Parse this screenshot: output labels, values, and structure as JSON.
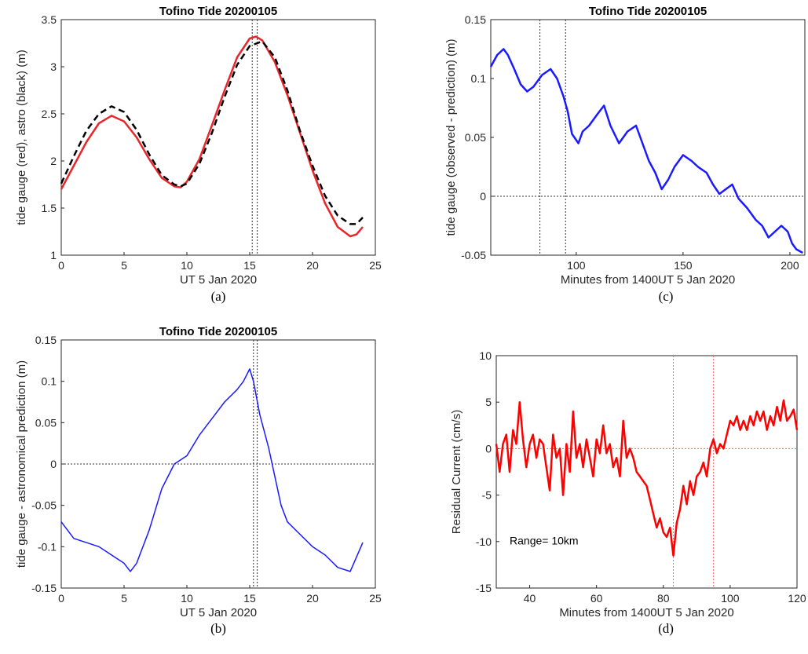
{
  "chart_data": [
    {
      "panel": "(a)",
      "type": "line",
      "title": "Tofino Tide 20200105",
      "xlabel": "UT 5 Jan 2020",
      "ylabel": "tide gauge (red), astro (black) (m)",
      "xlim": [
        0,
        25
      ],
      "ylim": [
        1,
        3.5
      ],
      "xticks": [
        "0",
        "5",
        "10",
        "15",
        "20",
        "25"
      ],
      "yticks": [
        "1",
        "1.5",
        "2",
        "2.5",
        "3",
        "3.5"
      ],
      "vlines": [
        15.2,
        15.6
      ],
      "series": [
        {
          "color": "#e8262b",
          "style": "solid",
          "x": [
            0,
            1,
            2,
            3,
            4,
            5,
            6,
            7,
            8,
            9,
            9.5,
            10,
            11,
            12,
            13,
            14,
            15,
            15.5,
            16,
            17,
            18,
            19,
            20,
            21,
            22,
            23,
            23.5,
            24
          ],
          "y": [
            1.7,
            1.95,
            2.2,
            2.4,
            2.48,
            2.42,
            2.25,
            2.02,
            1.82,
            1.73,
            1.72,
            1.78,
            2.02,
            2.38,
            2.75,
            3.1,
            3.3,
            3.32,
            3.28,
            3.05,
            2.7,
            2.3,
            1.9,
            1.55,
            1.3,
            1.2,
            1.22,
            1.3
          ]
        },
        {
          "color": "#000000",
          "style": "dashed",
          "x": [
            0,
            1,
            2,
            3,
            4,
            5,
            6,
            7,
            8,
            9,
            9.5,
            10,
            11,
            12,
            13,
            14,
            15,
            16,
            17,
            18,
            19,
            20,
            21,
            22,
            23,
            23.5,
            24
          ],
          "y": [
            1.76,
            2.05,
            2.32,
            2.5,
            2.58,
            2.52,
            2.33,
            2.07,
            1.85,
            1.75,
            1.73,
            1.76,
            1.97,
            2.3,
            2.68,
            3.02,
            3.22,
            3.27,
            3.1,
            2.75,
            2.32,
            1.95,
            1.63,
            1.42,
            1.33,
            1.33,
            1.4
          ]
        }
      ]
    },
    {
      "panel": "(b)",
      "type": "line",
      "title": "Tofino Tide 20200105",
      "xlabel": "UT 5 Jan 2020",
      "ylabel": "tide gauge - astronomical prediction (m)",
      "xlim": [
        0,
        25
      ],
      "ylim": [
        -0.15,
        0.15
      ],
      "xticks": [
        "0",
        "5",
        "10",
        "15",
        "20",
        "25"
      ],
      "yticks": [
        "-0.15",
        "-0.1",
        "-0.05",
        "0",
        "0.05",
        "0.1",
        "0.15"
      ],
      "hline": 0,
      "vlines": [
        15.3,
        15.6
      ],
      "series": [
        {
          "color": "#1a1aff",
          "style": "solid",
          "x": [
            0,
            1,
            2,
            3,
            4,
            5,
            5.5,
            6,
            7,
            8,
            9,
            10,
            11,
            12,
            13,
            14,
            14.5,
            15,
            15.3,
            15.8,
            16.5,
            17,
            17.5,
            18,
            19,
            20,
            21,
            22,
            23,
            24
          ],
          "y": [
            -0.07,
            -0.09,
            -0.095,
            -0.1,
            -0.11,
            -0.12,
            -0.13,
            -0.12,
            -0.08,
            -0.03,
            0,
            0.01,
            0.035,
            0.055,
            0.075,
            0.09,
            0.1,
            0.115,
            0.1,
            0.06,
            0.02,
            -0.015,
            -0.05,
            -0.07,
            -0.085,
            -0.1,
            -0.11,
            -0.125,
            -0.13,
            -0.095
          ]
        }
      ]
    },
    {
      "panel": "(c)",
      "type": "line",
      "title": "Tofino Tide 20200105",
      "xlabel": "Minutes from 1400UT 5 Jan 2020",
      "ylabel": "tide gauge (observed - prediction) (m)",
      "xlim": [
        60,
        207
      ],
      "ylim": [
        -0.05,
        0.15
      ],
      "xticks": [
        "100",
        "150",
        "200"
      ],
      "yticks": [
        "-0.05",
        "0",
        "0.05",
        "0.1",
        "0.15"
      ],
      "hline": 0,
      "vlines": [
        83,
        95
      ],
      "series": [
        {
          "color": "#1a1aff",
          "style": "solid",
          "x": [
            60,
            63,
            66,
            68,
            71,
            74,
            77,
            80,
            84,
            88,
            91,
            94,
            96,
            98,
            101,
            103,
            106,
            110,
            113,
            116,
            120,
            124,
            128,
            131,
            134,
            137,
            140,
            143,
            146,
            150,
            154,
            157,
            161,
            164,
            167,
            170,
            173,
            176,
            180,
            184,
            187,
            190,
            193,
            196,
            199,
            201,
            203,
            206
          ],
          "y": [
            0.11,
            0.12,
            0.125,
            0.12,
            0.108,
            0.095,
            0.089,
            0.093,
            0.103,
            0.108,
            0.1,
            0.085,
            0.072,
            0.053,
            0.045,
            0.055,
            0.06,
            0.07,
            0.077,
            0.06,
            0.045,
            0.055,
            0.06,
            0.045,
            0.03,
            0.02,
            0.006,
            0.014,
            0.025,
            0.035,
            0.03,
            0.025,
            0.02,
            0.01,
            0.002,
            0.006,
            0.01,
            -0.002,
            -0.01,
            -0.02,
            -0.025,
            -0.035,
            -0.03,
            -0.025,
            -0.03,
            -0.04,
            -0.045,
            -0.048
          ]
        }
      ]
    },
    {
      "panel": "(d)",
      "type": "line",
      "title": "",
      "xlabel": "Minutes from 1400UT 5 Jan 2020",
      "ylabel": "Residual Current (cm/s)",
      "xlim": [
        30,
        120
      ],
      "ylim": [
        -15,
        10
      ],
      "xticks": [
        "40",
        "60",
        "80",
        "100",
        "120"
      ],
      "yticks": [
        "-15",
        "-10",
        "-5",
        "0",
        "5",
        "10"
      ],
      "hline": 0,
      "vlines": [
        83,
        95
      ],
      "annotation": "Range= 10km",
      "series": [
        {
          "color": "#ff0000",
          "style": "solid",
          "x": [
            30,
            31,
            32,
            33,
            34,
            35,
            36,
            37,
            38,
            39,
            40,
            41,
            42,
            43,
            44,
            45,
            46,
            47,
            48,
            49,
            50,
            51,
            52,
            53,
            54,
            55,
            56,
            57,
            58,
            59,
            60,
            61,
            62,
            63,
            64,
            65,
            66,
            67,
            68,
            69,
            70,
            71,
            72,
            73,
            74,
            75,
            76,
            77,
            78,
            79,
            80,
            81,
            82,
            83,
            84,
            85,
            86,
            87,
            88,
            89,
            90,
            91,
            92,
            93,
            94,
            95,
            96,
            97,
            98,
            99,
            100,
            101,
            102,
            103,
            104,
            105,
            106,
            107,
            108,
            109,
            110,
            111,
            112,
            113,
            114,
            115,
            116,
            117,
            118,
            119,
            120
          ],
          "y": [
            0.5,
            -2.5,
            0.5,
            1.5,
            -2.5,
            2,
            0.5,
            5,
            1,
            -2,
            0.5,
            1.5,
            -1,
            1,
            0.5,
            -2,
            -4.5,
            1.5,
            -1,
            0,
            -5,
            0.5,
            -2.5,
            4,
            -1,
            0.5,
            -2,
            1,
            -1,
            -3,
            1,
            -0.5,
            2.5,
            -0.5,
            0.5,
            -2,
            -1,
            -3,
            3,
            -1,
            0,
            -1,
            -2.5,
            -3,
            -3.5,
            -4,
            -5.5,
            -7,
            -8.5,
            -7.5,
            -9,
            -9.5,
            -8.5,
            -11.5,
            -8,
            -6.5,
            -4,
            -6,
            -3.5,
            -5,
            -3,
            -2.5,
            -1.5,
            -3,
            0,
            1,
            -0.5,
            0.5,
            0,
            1.5,
            3,
            2.5,
            3.5,
            2,
            3,
            2,
            3.5,
            2.5,
            4,
            3,
            4,
            2,
            3.5,
            2.5,
            4.5,
            3,
            5.2,
            3,
            3.5,
            4.2,
            2
          ]
        }
      ]
    }
  ],
  "captions": [
    "(a)",
    "(b)",
    "(c)",
    "(d)"
  ]
}
